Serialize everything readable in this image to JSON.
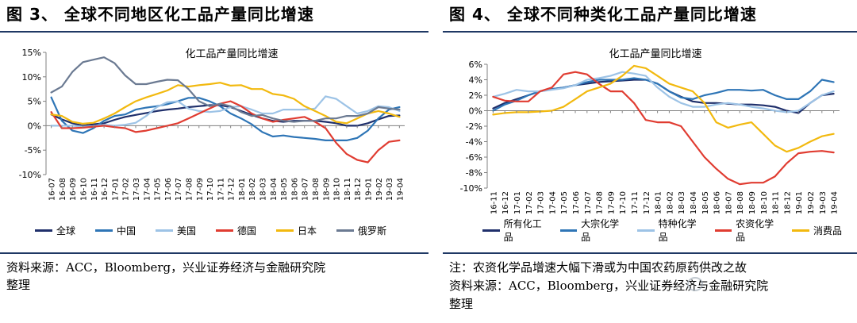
{
  "left": {
    "fig_title": "图 3、  全球不同地区化工品产量同比增速",
    "source_line1": "资料来源：ACC，Bloomberg，兴业证券经济与金融研究院",
    "source_line2": "整理",
    "chart_data": {
      "type": "line",
      "title": "化工品产量同比增速",
      "xlabel": "",
      "ylabel": "",
      "ylim": [
        -0.1,
        0.15
      ],
      "ytick_values": [
        -0.1,
        -0.05,
        0,
        0.05,
        0.1,
        0.15
      ],
      "ytick_labels": [
        "-10%",
        "-5%",
        "0%",
        "5%",
        "10%",
        "15%"
      ],
      "categories": [
        "16-07",
        "16-08",
        "16-09",
        "16-10",
        "16-11",
        "16-12",
        "17-01",
        "17-02",
        "17-03",
        "17-04",
        "17-05",
        "17-06",
        "17-07",
        "17-08",
        "17-09",
        "17-10",
        "17-11",
        "17-12",
        "18-01",
        "18-02",
        "18-03",
        "18-04",
        "18-05",
        "18-06",
        "18-07",
        "18-08",
        "18-09",
        "18-10",
        "18-11",
        "18-12",
        "19-01",
        "19-02",
        "19-03",
        "19-04"
      ],
      "legend_position": "bottom",
      "series": [
        {
          "name": "全球",
          "color": "#1f2f6b",
          "values": [
            0.023,
            0.013,
            0.005,
            0.0,
            0.003,
            0.005,
            0.012,
            0.018,
            0.022,
            0.026,
            0.03,
            0.033,
            0.035,
            0.038,
            0.04,
            0.042,
            0.042,
            0.038,
            0.03,
            0.022,
            0.015,
            0.01,
            0.008,
            0.01,
            0.01,
            0.01,
            0.008,
            0.005,
            0.0,
            0.0,
            0.005,
            0.013,
            0.02,
            0.021
          ]
        },
        {
          "name": "中国",
          "color": "#2e75b6",
          "values": [
            0.058,
            0.01,
            -0.01,
            -0.015,
            -0.005,
            0.01,
            0.02,
            0.023,
            0.033,
            0.037,
            0.04,
            0.044,
            0.05,
            0.057,
            0.057,
            0.05,
            0.04,
            0.025,
            0.015,
            0.003,
            -0.013,
            -0.022,
            -0.02,
            -0.023,
            -0.025,
            -0.027,
            -0.03,
            -0.03,
            -0.03,
            -0.025,
            -0.01,
            0.015,
            0.033,
            0.038
          ]
        },
        {
          "name": "美国",
          "color": "#9dc3e6",
          "values": [
            0.0,
            0.0,
            0.0,
            -0.002,
            -0.001,
            0.002,
            0.0,
            0.002,
            0.006,
            0.02,
            0.038,
            0.048,
            0.05,
            0.035,
            0.03,
            0.028,
            0.03,
            0.038,
            0.04,
            0.033,
            0.025,
            0.025,
            0.033,
            0.033,
            0.033,
            0.035,
            0.06,
            0.055,
            0.04,
            0.025,
            0.03,
            0.04,
            0.038,
            0.03
          ]
        },
        {
          "name": "德国",
          "color": "#e03c31",
          "values": [
            0.028,
            -0.005,
            -0.005,
            -0.004,
            -0.002,
            0.0,
            -0.003,
            -0.005,
            -0.013,
            -0.01,
            -0.005,
            0.0,
            0.005,
            0.015,
            0.025,
            0.035,
            0.045,
            0.05,
            0.04,
            0.025,
            0.015,
            0.008,
            0.012,
            0.015,
            0.018,
            0.008,
            -0.005,
            -0.035,
            -0.058,
            -0.07,
            -0.075,
            -0.05,
            -0.033,
            -0.03
          ]
        },
        {
          "name": "日本",
          "color": "#f2b90f",
          "values": [
            0.023,
            0.02,
            0.008,
            0.004,
            0.006,
            0.015,
            0.025,
            0.038,
            0.05,
            0.058,
            0.065,
            0.072,
            0.083,
            0.08,
            0.083,
            0.085,
            0.088,
            0.082,
            0.083,
            0.075,
            0.075,
            0.065,
            0.062,
            0.055,
            0.04,
            0.03,
            0.02,
            0.008,
            0.005,
            0.015,
            0.025,
            0.03,
            0.025,
            0.018
          ]
        },
        {
          "name": "俄罗斯",
          "color": "#6b7a92",
          "values": [
            0.068,
            0.08,
            0.11,
            0.13,
            0.135,
            0.14,
            0.128,
            0.103,
            0.085,
            0.085,
            0.09,
            0.094,
            0.093,
            0.075,
            0.05,
            0.04,
            0.045,
            0.04,
            0.028,
            0.02,
            0.022,
            0.015,
            0.01,
            0.008,
            0.01,
            0.01,
            0.015,
            0.015,
            0.02,
            0.02,
            0.025,
            0.038,
            0.035,
            0.033
          ]
        }
      ]
    }
  },
  "right": {
    "fig_title": "图 4、  全球不同种类化工品产量同比增速",
    "note_line": "注：农资化学品增速大幅下滑或为中国农药原药供改之故",
    "source_line1": "资料来源：ACC，Bloomberg，兴业证券经济与金融研究院",
    "source_line2": "整理",
    "chart_data": {
      "type": "line",
      "title": "化工品产量同比增速",
      "xlabel": "",
      "ylabel": "",
      "ylim": [
        -0.1,
        0.06
      ],
      "ytick_values": [
        -0.1,
        -0.08,
        -0.06,
        -0.04,
        -0.02,
        0,
        0.02,
        0.04,
        0.06
      ],
      "ytick_labels": [
        "-10%",
        "-8%",
        "-6%",
        "-4%",
        "-2%",
        "0%",
        "2%",
        "4%",
        "6%"
      ],
      "categories": [
        "16-11",
        "16-12",
        "17-01",
        "17-02",
        "17-03",
        "17-04",
        "17-05",
        "17-06",
        "17-07",
        "17-08",
        "17-09",
        "17-10",
        "17-11",
        "17-12",
        "18-01",
        "18-02",
        "18-03",
        "18-04",
        "18-05",
        "18-06",
        "18-07",
        "18-08",
        "18-09",
        "18-10",
        "18-11",
        "18-12",
        "19-01",
        "19-02",
        "19-03",
        "19-04"
      ],
      "legend_position": "bottom",
      "series": [
        {
          "name": "所有化工品",
          "color": "#1f2f6b",
          "values": [
            0.003,
            0.01,
            0.015,
            0.02,
            0.025,
            0.028,
            0.03,
            0.033,
            0.035,
            0.037,
            0.038,
            0.039,
            0.04,
            0.04,
            0.035,
            0.025,
            0.018,
            0.012,
            0.01,
            0.01,
            0.009,
            0.008,
            0.008,
            0.007,
            0.005,
            0.0,
            -0.003,
            0.01,
            0.02,
            0.022
          ]
        },
        {
          "name": "大宗化学品",
          "color": "#2e75b6",
          "values": [
            0.0,
            0.008,
            0.013,
            0.02,
            0.025,
            0.028,
            0.03,
            0.033,
            0.037,
            0.04,
            0.04,
            0.04,
            0.042,
            0.04,
            0.035,
            0.025,
            0.017,
            0.015,
            0.02,
            0.023,
            0.027,
            0.027,
            0.026,
            0.027,
            0.02,
            0.015,
            0.015,
            0.025,
            0.04,
            0.037
          ]
        },
        {
          "name": "特种化学品",
          "color": "#9dc3e6",
          "values": [
            0.018,
            0.022,
            0.027,
            0.025,
            0.025,
            0.027,
            0.029,
            0.033,
            0.04,
            0.042,
            0.045,
            0.05,
            0.048,
            0.045,
            0.03,
            0.018,
            0.01,
            0.005,
            0.005,
            0.008,
            0.01,
            0.008,
            0.005,
            0.003,
            0.0,
            -0.002,
            0.0,
            0.01,
            0.02,
            0.025
          ]
        },
        {
          "name": "农资化学品",
          "color": "#e03c31",
          "values": [
            0.018,
            0.013,
            0.012,
            0.012,
            0.025,
            0.03,
            0.047,
            0.05,
            0.047,
            0.035,
            0.025,
            0.025,
            0.01,
            -0.012,
            -0.015,
            -0.015,
            -0.02,
            -0.04,
            -0.06,
            -0.075,
            -0.088,
            -0.095,
            -0.093,
            -0.093,
            -0.085,
            -0.068,
            -0.055,
            -0.053,
            -0.052,
            -0.054
          ]
        },
        {
          "name": "消费品",
          "color": "#f2b90f",
          "values": [
            -0.005,
            -0.003,
            -0.002,
            -0.002,
            -0.001,
            0.0,
            0.005,
            0.015,
            0.025,
            0.03,
            0.035,
            0.045,
            0.058,
            0.055,
            0.045,
            0.035,
            0.03,
            0.025,
            0.01,
            -0.015,
            -0.022,
            -0.018,
            -0.015,
            -0.03,
            -0.045,
            -0.053,
            -0.048,
            -0.04,
            -0.033,
            -0.03
          ]
        }
      ]
    }
  }
}
